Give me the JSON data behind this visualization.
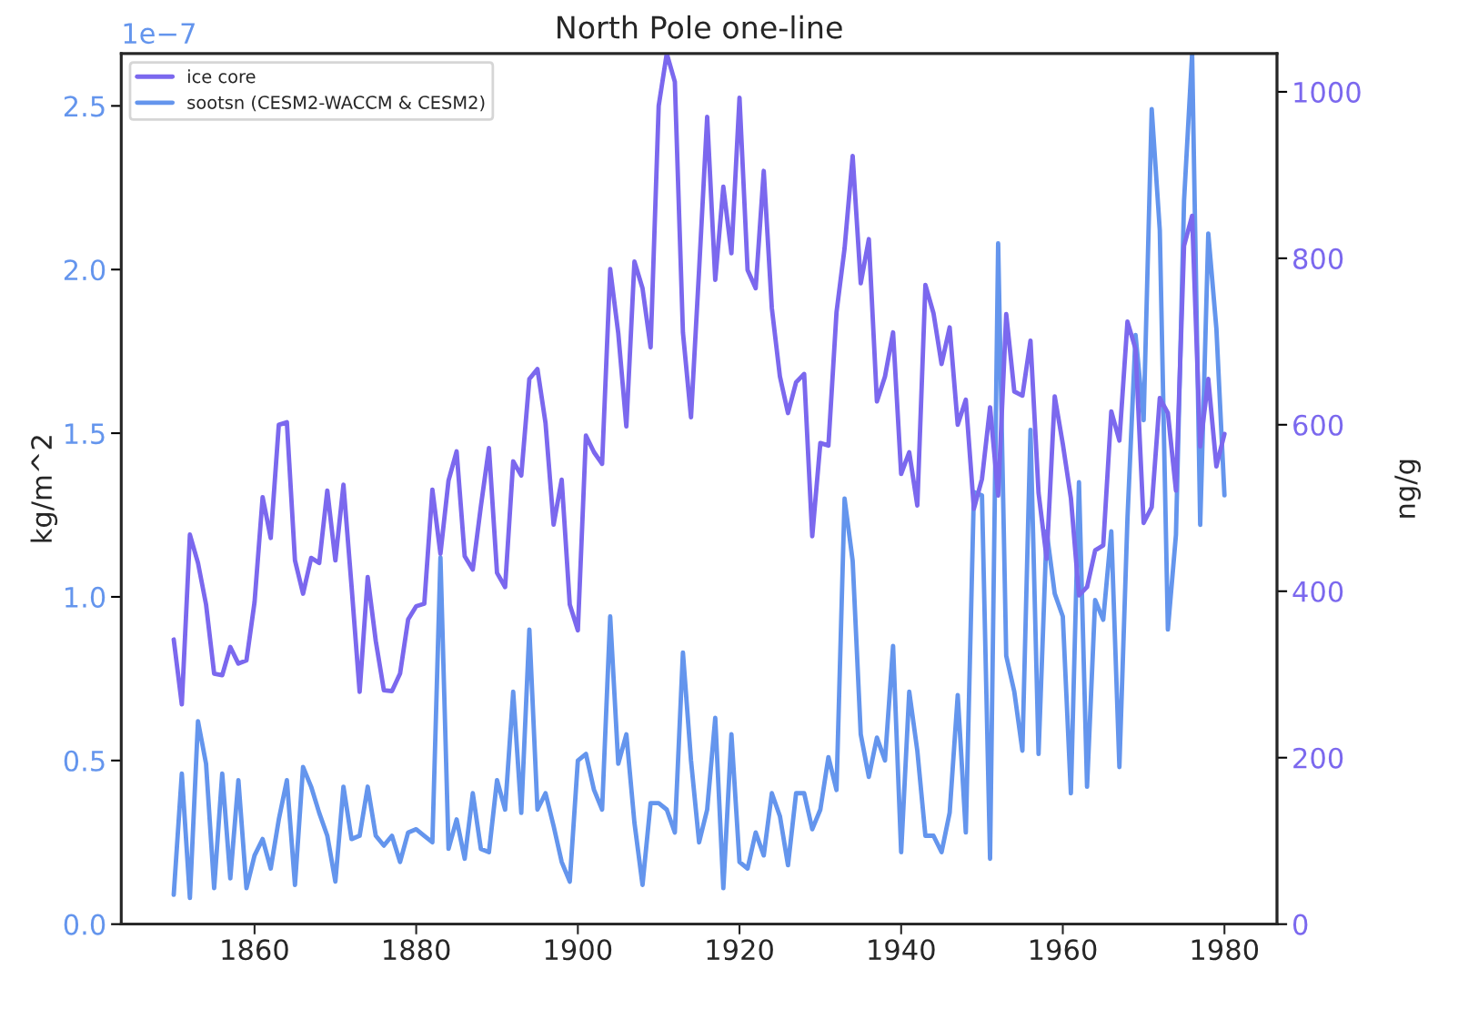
{
  "chart_data": {
    "type": "line",
    "title": "North Pole one-line",
    "ylabel": "kg/m^2",
    "y2label": "ng/g",
    "annotations": [
      "1e−7"
    ],
    "x": [
      1850,
      1851,
      1852,
      1853,
      1854,
      1855,
      1856,
      1857,
      1858,
      1859,
      1860,
      1861,
      1862,
      1863,
      1864,
      1865,
      1866,
      1867,
      1868,
      1869,
      1870,
      1871,
      1872,
      1873,
      1874,
      1875,
      1876,
      1877,
      1878,
      1879,
      1880,
      1881,
      1882,
      1883,
      1884,
      1885,
      1886,
      1887,
      1888,
      1889,
      1890,
      1891,
      1892,
      1893,
      1894,
      1895,
      1896,
      1897,
      1898,
      1899,
      1900,
      1901,
      1902,
      1903,
      1904,
      1905,
      1906,
      1907,
      1908,
      1909,
      1910,
      1911,
      1912,
      1913,
      1914,
      1915,
      1916,
      1917,
      1918,
      1919,
      1920,
      1921,
      1922,
      1923,
      1924,
      1925,
      1926,
      1927,
      1928,
      1929,
      1930,
      1931,
      1932,
      1933,
      1934,
      1935,
      1936,
      1937,
      1938,
      1939,
      1940,
      1941,
      1942,
      1943,
      1944,
      1945,
      1946,
      1947,
      1948,
      1949,
      1950,
      1951,
      1952,
      1953,
      1954,
      1955,
      1956,
      1957,
      1958,
      1959,
      1960,
      1961,
      1962,
      1963,
      1964,
      1965,
      1966,
      1967,
      1968,
      1969,
      1970,
      1971,
      1972,
      1973,
      1974,
      1975,
      1976,
      1977,
      1978,
      1979,
      1980
    ],
    "series": [
      {
        "name": "ice core",
        "color": "#7b68ee",
        "axis": "y2",
        "values": [
          342,
          264,
          468,
          434,
          384,
          301,
          299,
          333,
          313,
          317,
          387,
          513,
          464,
          600,
          603,
          437,
          397,
          440,
          434,
          521,
          437,
          528,
          406,
          279,
          417,
          340,
          281,
          280,
          301,
          366,
          382,
          385,
          522,
          445,
          533,
          568,
          442,
          426,
          502,
          572,
          422,
          405,
          556,
          539,
          655,
          667,
          602,
          480,
          534,
          384,
          353,
          587,
          567,
          553,
          787,
          710,
          598,
          796,
          764,
          693,
          983,
          1046,
          1012,
          711,
          609,
          786,
          970,
          774,
          886,
          806,
          993,
          786,
          764,
          905,
          740,
          658,
          614,
          651,
          661,
          466,
          578,
          575,
          735,
          812,
          923,
          770,
          823,
          628,
          658,
          711,
          541,
          567,
          503,
          768,
          734,
          673,
          717,
          600,
          630,
          499,
          535,
          621,
          515,
          733,
          640,
          635,
          701,
          518,
          439,
          634,
          577,
          512,
          395,
          405,
          449,
          455,
          616,
          581,
          724,
          691,
          482,
          501,
          632,
          614,
          521,
          815,
          851,
          574,
          655,
          550,
          589
        ]
      },
      {
        "name": "sootsn (CESM2-WACCM & CESM2)",
        "color": "#6495ed",
        "values": [
          0.09,
          0.46,
          0.08,
          0.62,
          0.49,
          0.11,
          0.46,
          0.14,
          0.44,
          0.11,
          0.21,
          0.26,
          0.17,
          0.32,
          0.44,
          0.12,
          0.48,
          0.42,
          0.34,
          0.27,
          0.13,
          0.42,
          0.26,
          0.27,
          0.42,
          0.27,
          0.24,
          0.27,
          0.19,
          0.28,
          0.29,
          0.27,
          0.25,
          1.12,
          0.23,
          0.32,
          0.2,
          0.4,
          0.23,
          0.22,
          0.44,
          0.35,
          0.71,
          0.34,
          0.9,
          0.35,
          0.4,
          0.3,
          0.19,
          0.13,
          0.5,
          0.52,
          0.41,
          0.35,
          0.94,
          0.49,
          0.58,
          0.31,
          0.12,
          0.37,
          0.37,
          0.35,
          0.28,
          0.83,
          0.5,
          0.25,
          0.35,
          0.63,
          0.11,
          0.58,
          0.19,
          0.17,
          0.28,
          0.21,
          0.4,
          0.33,
          0.18,
          0.4,
          0.4,
          0.29,
          0.35,
          0.51,
          0.41,
          1.3,
          1.11,
          0.58,
          0.45,
          0.57,
          0.5,
          0.85,
          0.22,
          0.71,
          0.53,
          0.27,
          0.27,
          0.22,
          0.34,
          0.7,
          0.28,
          1.32,
          1.31,
          0.2,
          2.08,
          0.82,
          0.71,
          0.53,
          1.51,
          0.52,
          1.2,
          1.01,
          0.94,
          0.4,
          1.35,
          0.42,
          0.99,
          0.93,
          1.2,
          0.48,
          1.24,
          1.8,
          1.54,
          2.49,
          2.12,
          0.9,
          1.19,
          2.21,
          2.66,
          1.22,
          2.11,
          1.82,
          1.31
        ]
      }
    ],
    "xlim": [
      1843.5,
      1986.5
    ],
    "xticks": [
      1860,
      1880,
      1900,
      1920,
      1940,
      1960,
      1980
    ],
    "ylim": [
      0,
      2.66
    ],
    "yticks": [
      {
        "value": 0,
        "label": "0.0"
      },
      {
        "value": 0.5,
        "label": "0.5"
      },
      {
        "value": 1,
        "label": "1.0"
      },
      {
        "value": 1.5,
        "label": "1.5"
      },
      {
        "value": 2,
        "label": "2.0"
      },
      {
        "value": 2.5,
        "label": "2.5"
      }
    ],
    "y2lim": [
      0,
      1046
    ],
    "y2ticks": [
      0,
      200,
      400,
      600,
      800,
      1000
    ],
    "legend": "top left",
    "grid": false,
    "marker": "none",
    "line_style": "solid"
  }
}
